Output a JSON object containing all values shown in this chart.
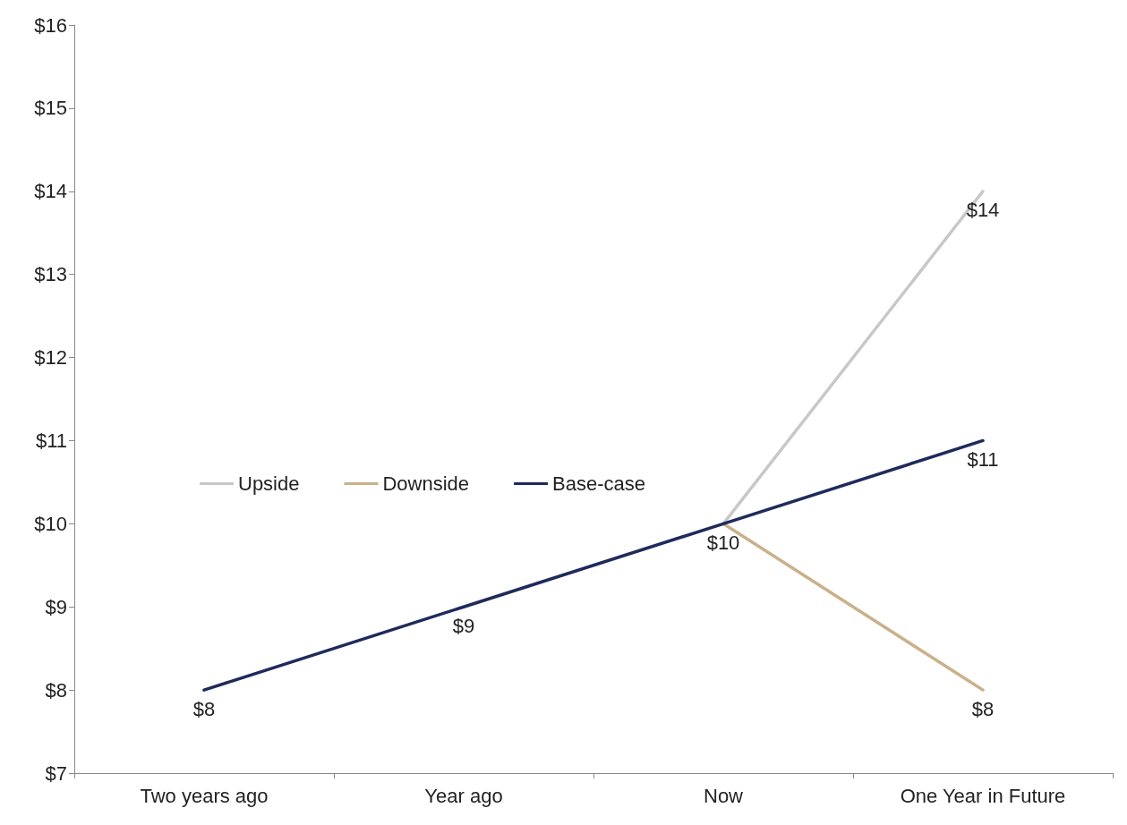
{
  "chart_data": {
    "type": "line",
    "categories": [
      "Two years ago",
      "Year ago",
      "Now",
      "One Year in Future"
    ],
    "series": [
      {
        "name": "Upside",
        "color": "#c8c8c8",
        "values": [
          null,
          null,
          10,
          14
        ],
        "value_labels": [
          null,
          null,
          null,
          "$14"
        ]
      },
      {
        "name": "Downside",
        "color": "#c9b18a",
        "values": [
          null,
          null,
          10,
          8
        ],
        "value_labels": [
          null,
          null,
          null,
          "$8"
        ]
      },
      {
        "name": "Base-case",
        "color": "#1f2a5c",
        "values": [
          8,
          9,
          10,
          11
        ],
        "value_labels": [
          "$8",
          "$9",
          "$10",
          "$11"
        ]
      }
    ],
    "ylim": [
      7,
      16
    ],
    "yticks": [
      {
        "value": 7,
        "label": "$7"
      },
      {
        "value": 8,
        "label": "$8"
      },
      {
        "value": 9,
        "label": "$9"
      },
      {
        "value": 10,
        "label": "$10"
      },
      {
        "value": 11,
        "label": "$11"
      },
      {
        "value": 12,
        "label": "$12"
      },
      {
        "value": 13,
        "label": "$13"
      },
      {
        "value": 14,
        "label": "$14"
      },
      {
        "value": 15,
        "label": "$15"
      },
      {
        "value": 16,
        "label": "$16"
      }
    ],
    "grid": false,
    "legend": "left",
    "marker": "none",
    "line_style": "solid"
  }
}
